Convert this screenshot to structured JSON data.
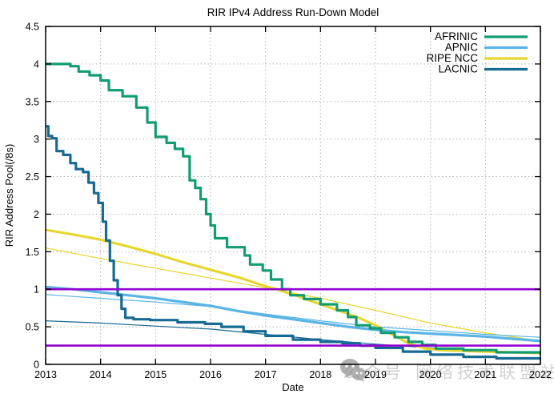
{
  "watermark": {
    "icon": "wechat-icon",
    "label_left": "公众号",
    "label_right": "网络技术联盟站"
  },
  "chart_data": {
    "type": "line",
    "title": "RIR IPv4 Address Run-Down Model",
    "xlabel": "Date",
    "ylabel": "RIR Address Pool(/8s)",
    "xlim": [
      2013,
      2022
    ],
    "ylim": [
      0,
      4.5
    ],
    "x_ticks": [
      2013,
      2014,
      2015,
      2016,
      2017,
      2018,
      2019,
      2020,
      2021,
      2022
    ],
    "y_ticks": [
      0,
      0.5,
      1,
      1.5,
      2,
      2.5,
      3,
      3.5,
      4,
      4.5
    ],
    "grid": true,
    "legend_position": "top-right",
    "legend_entries": [
      {
        "label": "AFRINIC",
        "color": "#129c74"
      },
      {
        "label": "APNIC",
        "color": "#5ab4e5"
      },
      {
        "label": "RIPE NCC",
        "color": "#e6d72e"
      },
      {
        "label": "LACNIC",
        "color": "#176a93"
      }
    ],
    "thresholds": [
      {
        "y": 1.0,
        "color": "#9400d3"
      },
      {
        "y": 0.25,
        "color": "#9400d3"
      }
    ],
    "series": [
      {
        "name": "RIPE NCC model",
        "role": "projection",
        "color": "#e6d72e",
        "width": 1.2,
        "step": false,
        "points": [
          [
            2013,
            1.55
          ],
          [
            2014,
            1.41
          ],
          [
            2015,
            1.28
          ],
          [
            2016,
            1.15
          ],
          [
            2017,
            1.02
          ],
          [
            2018,
            0.88
          ],
          [
            2019,
            0.72
          ],
          [
            2020,
            0.55
          ],
          [
            2021,
            0.42
          ],
          [
            2022,
            0.31
          ]
        ]
      },
      {
        "name": "APNIC model",
        "role": "projection",
        "color": "#5ab4e5",
        "width": 1.2,
        "step": false,
        "points": [
          [
            2013,
            0.93
          ],
          [
            2014,
            0.88
          ],
          [
            2015,
            0.83
          ],
          [
            2016,
            0.77
          ],
          [
            2017,
            0.67
          ],
          [
            2018,
            0.58
          ],
          [
            2019,
            0.5
          ],
          [
            2020,
            0.45
          ],
          [
            2021,
            0.4
          ],
          [
            2022,
            0.36
          ]
        ]
      },
      {
        "name": "LACNIC model",
        "role": "projection",
        "color": "#176a93",
        "width": 1.2,
        "step": false,
        "points": [
          [
            2013,
            0.58
          ],
          [
            2014,
            0.55
          ],
          [
            2015,
            0.51
          ],
          [
            2016,
            0.47
          ],
          [
            2017,
            0.4
          ],
          [
            2018,
            0.33
          ],
          [
            2019,
            0.27
          ],
          [
            2020,
            0.22
          ],
          [
            2021,
            0.18
          ],
          [
            2022,
            0.15
          ]
        ]
      },
      {
        "name": "RIPE NCC",
        "role": "actual",
        "color": "#e6d72e",
        "width": 3.2,
        "step": false,
        "points": [
          [
            2013,
            1.79
          ],
          [
            2013.5,
            1.73
          ],
          [
            2014,
            1.66
          ],
          [
            2014.5,
            1.57
          ],
          [
            2015,
            1.47
          ],
          [
            2015.5,
            1.36
          ],
          [
            2016,
            1.26
          ],
          [
            2016.5,
            1.16
          ],
          [
            2017,
            1.04
          ],
          [
            2017.2,
            1.0
          ],
          [
            2017.5,
            0.93
          ],
          [
            2018,
            0.8
          ],
          [
            2018.4,
            0.7
          ],
          [
            2018.7,
            0.62
          ],
          [
            2019,
            0.52
          ],
          [
            2019.3,
            0.4
          ],
          [
            2019.6,
            0.28
          ],
          [
            2019.9,
            0.21
          ],
          [
            2020.2,
            0.19
          ],
          [
            2021,
            0.17
          ],
          [
            2022,
            0.15
          ]
        ]
      },
      {
        "name": "APNIC",
        "role": "actual",
        "color": "#5ab4e5",
        "width": 3.2,
        "step": false,
        "points": [
          [
            2013,
            1.03
          ],
          [
            2013.5,
            1.0
          ],
          [
            2014,
            0.96
          ],
          [
            2014.5,
            0.92
          ],
          [
            2015,
            0.88
          ],
          [
            2015.5,
            0.83
          ],
          [
            2016,
            0.78
          ],
          [
            2016.5,
            0.71
          ],
          [
            2017,
            0.65
          ],
          [
            2017.5,
            0.6
          ],
          [
            2018,
            0.55
          ],
          [
            2018.5,
            0.5
          ],
          [
            2019,
            0.46
          ],
          [
            2019.5,
            0.43
          ],
          [
            2020,
            0.41
          ],
          [
            2020.5,
            0.39
          ],
          [
            2021,
            0.37
          ],
          [
            2021.5,
            0.34
          ],
          [
            2022,
            0.31
          ]
        ]
      },
      {
        "name": "AFRINIC",
        "role": "actual",
        "color": "#129c74",
        "width": 3.2,
        "step": true,
        "points": [
          [
            2013,
            4.0
          ],
          [
            2013.45,
            3.97
          ],
          [
            2013.6,
            3.9
          ],
          [
            2013.8,
            3.85
          ],
          [
            2014,
            3.78
          ],
          [
            2014.15,
            3.65
          ],
          [
            2014.4,
            3.57
          ],
          [
            2014.65,
            3.42
          ],
          [
            2014.85,
            3.22
          ],
          [
            2015,
            3.03
          ],
          [
            2015.2,
            2.95
          ],
          [
            2015.35,
            2.87
          ],
          [
            2015.5,
            2.77
          ],
          [
            2015.62,
            2.45
          ],
          [
            2015.72,
            2.35
          ],
          [
            2015.82,
            2.2
          ],
          [
            2015.92,
            2.0
          ],
          [
            2016,
            1.85
          ],
          [
            2016.08,
            1.68
          ],
          [
            2016.3,
            1.56
          ],
          [
            2016.62,
            1.45
          ],
          [
            2016.72,
            1.33
          ],
          [
            2016.95,
            1.25
          ],
          [
            2017.1,
            1.13
          ],
          [
            2017.3,
            1.0
          ],
          [
            2017.45,
            0.92
          ],
          [
            2017.7,
            0.87
          ],
          [
            2018,
            0.8
          ],
          [
            2018.3,
            0.72
          ],
          [
            2018.5,
            0.63
          ],
          [
            2018.65,
            0.52
          ],
          [
            2018.9,
            0.48
          ],
          [
            2019.1,
            0.42
          ],
          [
            2019.35,
            0.36
          ],
          [
            2019.6,
            0.3
          ],
          [
            2019.85,
            0.26
          ],
          [
            2020.1,
            0.21
          ],
          [
            2020.6,
            0.19
          ],
          [
            2021.2,
            0.16
          ],
          [
            2022,
            0.13
          ]
        ]
      },
      {
        "name": "LACNIC",
        "role": "actual",
        "color": "#176a93",
        "width": 3.2,
        "step": true,
        "points": [
          [
            2013,
            3.17
          ],
          [
            2013.05,
            3.04
          ],
          [
            2013.12,
            3.01
          ],
          [
            2013.2,
            2.84
          ],
          [
            2013.32,
            2.79
          ],
          [
            2013.45,
            2.68
          ],
          [
            2013.55,
            2.6
          ],
          [
            2013.68,
            2.56
          ],
          [
            2013.78,
            2.42
          ],
          [
            2013.88,
            2.28
          ],
          [
            2013.96,
            2.15
          ],
          [
            2014.04,
            1.9
          ],
          [
            2014.1,
            1.65
          ],
          [
            2014.17,
            1.38
          ],
          [
            2014.24,
            1.12
          ],
          [
            2014.31,
            0.92
          ],
          [
            2014.38,
            0.74
          ],
          [
            2014.45,
            0.62
          ],
          [
            2014.6,
            0.6
          ],
          [
            2014.9,
            0.59
          ],
          [
            2015.4,
            0.56
          ],
          [
            2015.9,
            0.54
          ],
          [
            2016.2,
            0.5
          ],
          [
            2016.6,
            0.44
          ],
          [
            2017,
            0.38
          ],
          [
            2017.5,
            0.33
          ],
          [
            2018,
            0.3
          ],
          [
            2018.4,
            0.28
          ],
          [
            2018.72,
            0.25
          ],
          [
            2019,
            0.22
          ],
          [
            2019.5,
            0.17
          ],
          [
            2020,
            0.13
          ],
          [
            2020.6,
            0.1
          ],
          [
            2021.2,
            0.08
          ],
          [
            2022,
            0.07
          ]
        ]
      }
    ],
    "style": {
      "grid_color": "#b5b5b5",
      "axis_color": "#000000",
      "threshold_width": 2.6
    }
  }
}
